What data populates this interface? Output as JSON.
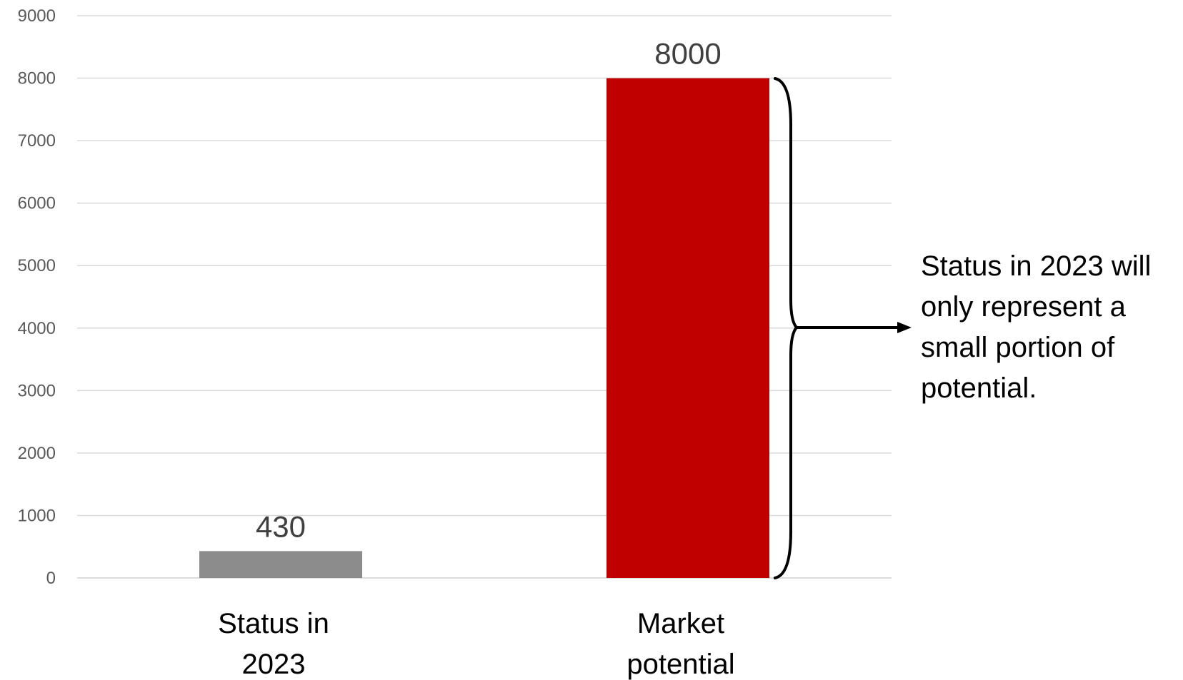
{
  "chart_data": {
    "type": "bar",
    "categories": [
      [
        "Status in",
        "2023"
      ],
      [
        "Market",
        "potential"
      ]
    ],
    "values": [
      430,
      8000
    ],
    "bar_colors": [
      "#8c8c8c",
      "#c00000"
    ],
    "ylim": [
      0,
      9000
    ],
    "yticks": [
      0,
      1000,
      2000,
      3000,
      4000,
      5000,
      6000,
      7000,
      8000,
      9000
    ],
    "grid": true,
    "data_labels": [
      "430",
      "8000"
    ],
    "title": "",
    "xlabel": "",
    "ylabel": "",
    "annotation": "Status in 2023 will only represent a small portion of potential."
  }
}
